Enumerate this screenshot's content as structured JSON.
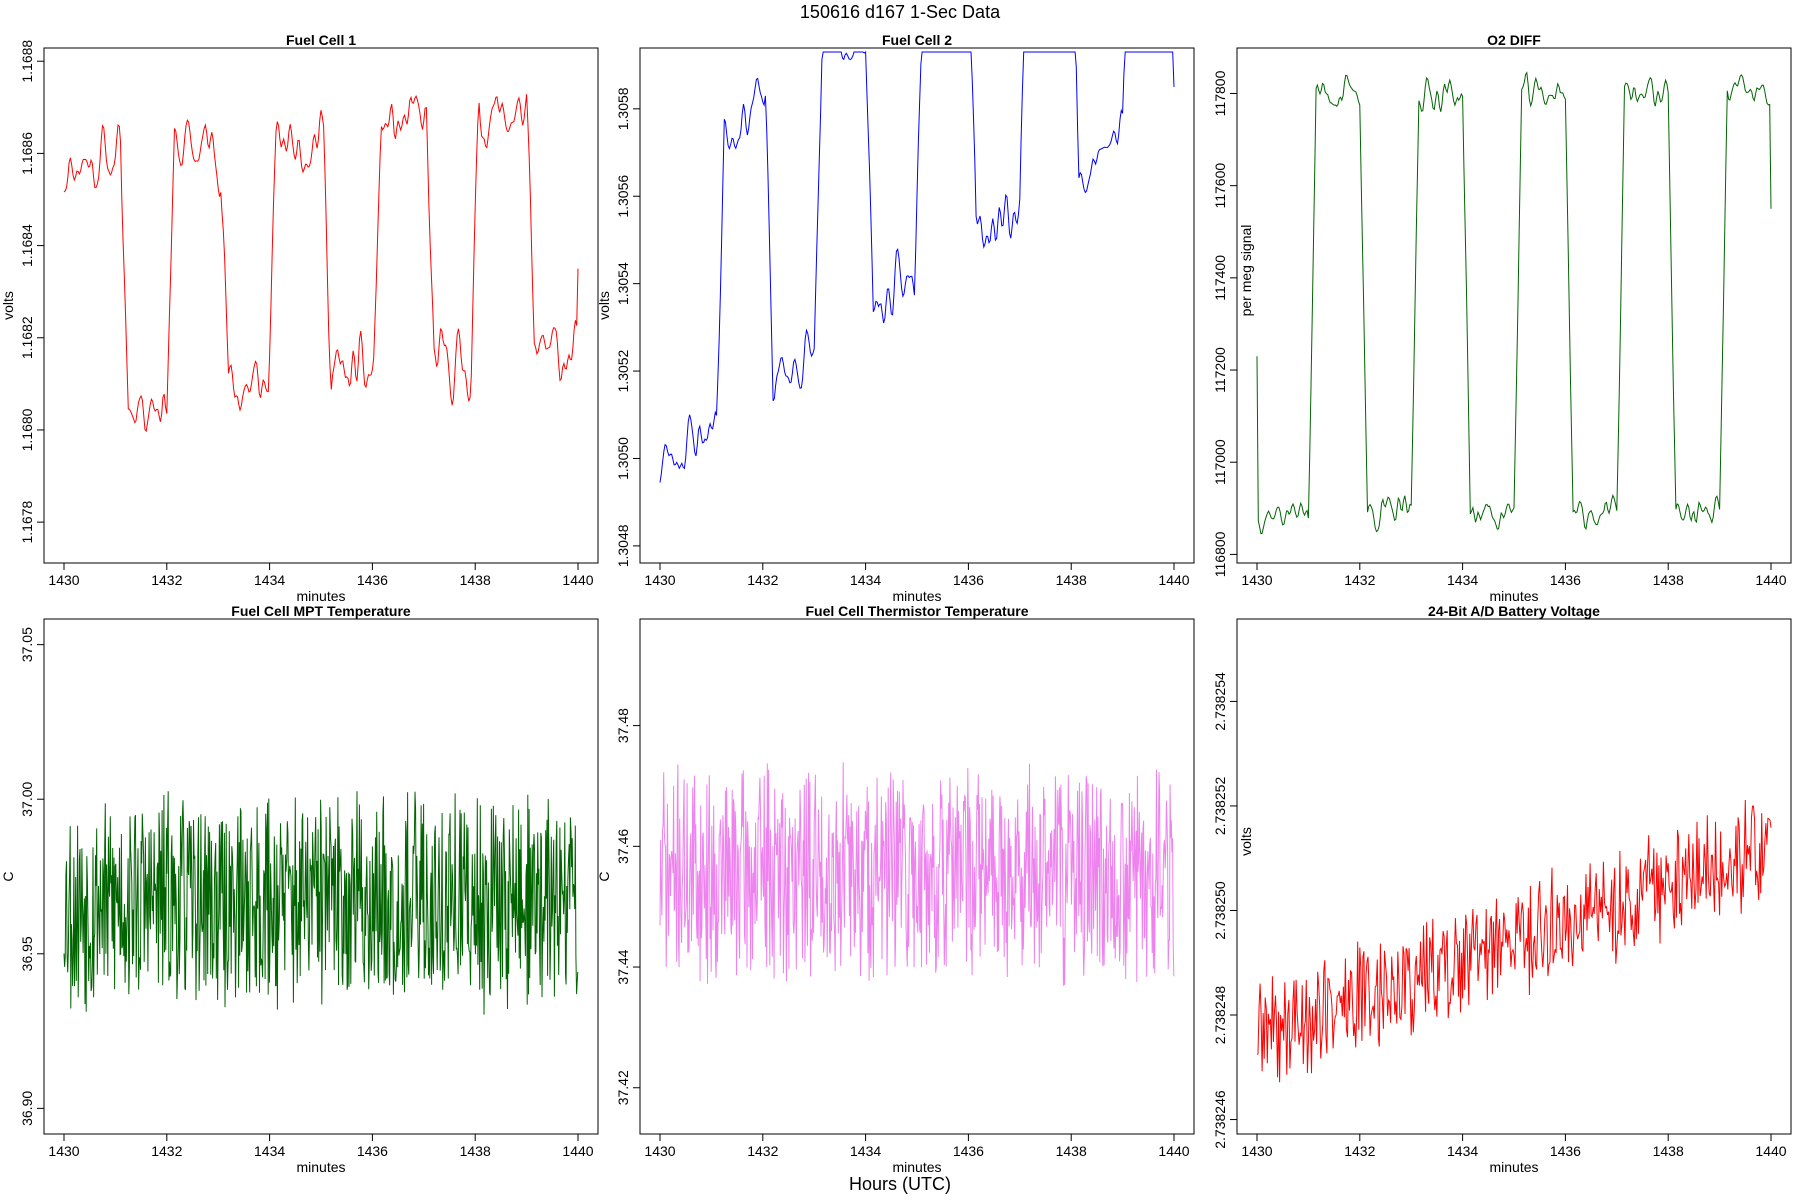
{
  "figure": {
    "title": "150616   d167   1-Sec Data",
    "xlabel": "Hours (UTC)"
  },
  "chart_data": [
    {
      "type": "line",
      "title": "Fuel Cell 1",
      "xlabel": "minutes",
      "ylabel": "volts",
      "color": "#ff0000",
      "xlim": [
        1430,
        1440
      ],
      "ylim": [
        1.16772,
        1.16882
      ],
      "xticks": [
        1430,
        1432,
        1434,
        1436,
        1438,
        1440
      ],
      "xtick_labels": [
        "1430",
        "1432",
        "1434",
        "1436",
        "1438",
        "1440"
      ],
      "yticks": [
        1.1678,
        1.168,
        1.1682,
        1.1684,
        1.1686,
        1.1688
      ],
      "ytick_labels": [
        "1.1678",
        "1.1680",
        "1.1682",
        "1.1684",
        "1.1686",
        "1.1688"
      ],
      "waveform": {
        "kind": "square",
        "low": 1.16805,
        "high": 1.16858,
        "transitions": [
          1431.1,
          1432.0,
          1433.05,
          1433.98,
          1435.05,
          1436.02,
          1437.05,
          1437.92,
          1439.0
        ],
        "start_high": true,
        "noise": 0.00011,
        "trend": 2e-05,
        "seed": 11,
        "step": 0.025,
        "smooth": 3,
        "phase_shift": [
          0.0,
          0.0
        ],
        "end_value": 1.16835
      }
    },
    {
      "type": "line",
      "title": "Fuel Cell 2",
      "xlabel": "minutes",
      "ylabel": "volts",
      "color": "#0000ff",
      "xlim": [
        1430,
        1440
      ],
      "ylim": [
        1.30477,
        1.30593
      ],
      "xticks": [
        1430,
        1432,
        1434,
        1436,
        1438,
        1440
      ],
      "xtick_labels": [
        "1430",
        "1432",
        "1434",
        "1436",
        "1438",
        "1440"
      ],
      "yticks": [
        1.3048,
        1.305,
        1.3052,
        1.3054,
        1.3056,
        1.3058
      ],
      "ytick_labels": [
        "1.3048",
        "1.3050",
        "1.3052",
        "1.3054",
        "1.3056",
        "1.3058"
      ],
      "waveform": {
        "kind": "square",
        "low": 1.30499,
        "high": 1.30565,
        "transitions": [
          1431.1,
          1432.05,
          1433.0,
          1434.0,
          1434.95,
          1436.0,
          1437.0,
          1438.0,
          1439.0
        ],
        "start_high": false,
        "noise": 0.0001,
        "trend": 0.00014,
        "seed": 23,
        "step": 0.025,
        "smooth": 3,
        "phase_shift": [
          0.0,
          0.0
        ],
        "end_value": 1.30585
      }
    },
    {
      "type": "line",
      "title": "O2 DIFF",
      "xlabel": "minutes",
      "ylabel": "per meg signal",
      "color": "#006400",
      "xlim": [
        1430,
        1440
      ],
      "ylim": [
        116790,
        117890
      ],
      "xticks": [
        1430,
        1432,
        1434,
        1436,
        1438,
        1440
      ],
      "xtick_labels": [
        "1430",
        "1432",
        "1434",
        "1436",
        "1438",
        "1440"
      ],
      "yticks": [
        116800,
        117000,
        117200,
        117400,
        117600,
        117800
      ],
      "ytick_labels": [
        "116800",
        "117000",
        "117200",
        "117400",
        "117600",
        "117800"
      ],
      "waveform": {
        "kind": "square",
        "low": 116890,
        "high": 117800,
        "transitions": [
          1431.0,
          1432.0,
          1433.0,
          1434.0,
          1435.0,
          1436.0,
          1437.0,
          1438.0,
          1439.0
        ],
        "start_high": false,
        "noise": 45,
        "trend": 0,
        "seed": 37,
        "step": 0.025,
        "smooth": 2,
        "phase_shift": [
          0.0,
          0.0
        ],
        "start_value": 117230,
        "end_value": 117550
      }
    },
    {
      "type": "line",
      "title": "Fuel Cell MPT Temperature",
      "xlabel": "minutes",
      "ylabel": "C",
      "color": "#006400",
      "xlim": [
        1430,
        1440
      ],
      "ylim": [
        36.893,
        37.057
      ],
      "xticks": [
        1430,
        1432,
        1434,
        1436,
        1438,
        1440
      ],
      "xtick_labels": [
        "1430",
        "1432",
        "1434",
        "1436",
        "1438",
        "1440"
      ],
      "yticks": [
        36.9,
        36.95,
        37.0,
        37.05
      ],
      "ytick_labels": [
        "36.90",
        "36.95",
        "37.00",
        "37.05"
      ],
      "waveform": {
        "kind": "noise",
        "base": 36.967,
        "amp": 0.035,
        "trend": 0.0,
        "seed": 53,
        "step": 0.012,
        "smooth": 0
      }
    },
    {
      "type": "line",
      "title": "Fuel Cell Thermistor Temperature",
      "xlabel": "minutes",
      "ylabel": "C",
      "color": "#ee82ee",
      "xlim": [
        1430,
        1440
      ],
      "ylim": [
        37.413,
        37.497
      ],
      "xticks": [
        1430,
        1432,
        1434,
        1436,
        1438,
        1440
      ],
      "xtick_labels": [
        "1430",
        "1432",
        "1434",
        "1436",
        "1438",
        "1440"
      ],
      "yticks": [
        37.42,
        37.44,
        37.46,
        37.48
      ],
      "ytick_labels": [
        "37.42",
        "37.44",
        "37.46",
        "37.48"
      ],
      "waveform": {
        "kind": "noise",
        "base": 37.4555,
        "amp": 0.018,
        "trend": 0.0,
        "seed": 71,
        "step": 0.012,
        "smooth": 0
      }
    },
    {
      "type": "line",
      "title": "24-Bit A/D Battery Voltage",
      "xlabel": "minutes",
      "ylabel": "volts",
      "color": "#ff0000",
      "xlim": [
        1430,
        1440
      ],
      "ylim": [
        2.7382458,
        2.7382555
      ],
      "xticks": [
        1430,
        1432,
        1434,
        1436,
        1438,
        1440
      ],
      "xtick_labels": [
        "1430",
        "1432",
        "1434",
        "1436",
        "1438",
        "1440"
      ],
      "yticks": [
        2.738246,
        2.738248,
        2.73825,
        2.738252,
        2.738254
      ],
      "ytick_labels": [
        "2.738246",
        "2.738248",
        "2.738250",
        "2.738252",
        "2.738254"
      ],
      "waveform": {
        "kind": "noise",
        "base": 2.7382476,
        "amp": 1.1e-06,
        "trend": 3.6e-06,
        "seed": 89,
        "step": 0.02,
        "smooth": 0
      }
    }
  ]
}
